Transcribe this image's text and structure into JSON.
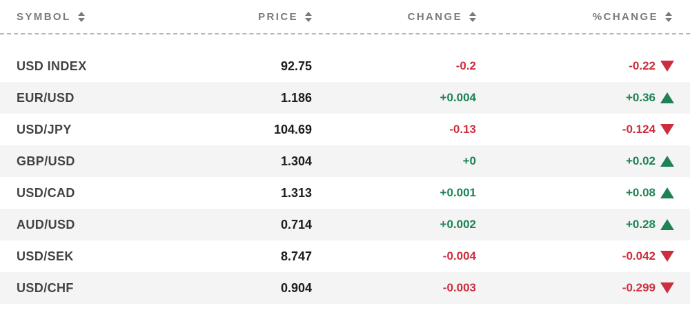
{
  "colors": {
    "up": "#1e8255",
    "down": "#cc2e3d",
    "header_text": "#7a7a7a",
    "separator": "#b5b5b5",
    "symbol_text": "#424242",
    "price_text": "#1c1c1c",
    "alt_row_bg": "#f4f4f4"
  },
  "icons": {
    "sort": "sort-arrows (up+down triangles)",
    "up": "triangle-up",
    "down": "triangle-down"
  },
  "table": {
    "columns": [
      {
        "label": "SYMBOL"
      },
      {
        "label": "PRICE"
      },
      {
        "label": "CHANGE"
      },
      {
        "label": "%CHANGE"
      }
    ],
    "rows": [
      {
        "symbol": "USD INDEX",
        "price": "92.75",
        "change": "-0.2",
        "pct_change": "-0.22",
        "direction": "down"
      },
      {
        "symbol": "EUR/USD",
        "price": "1.186",
        "change": "+0.004",
        "pct_change": "+0.36",
        "direction": "up"
      },
      {
        "symbol": "USD/JPY",
        "price": "104.69",
        "change": "-0.13",
        "pct_change": "-0.124",
        "direction": "down"
      },
      {
        "symbol": "GBP/USD",
        "price": "1.304",
        "change": "+0",
        "pct_change": "+0.02",
        "direction": "up"
      },
      {
        "symbol": "USD/CAD",
        "price": "1.313",
        "change": "+0.001",
        "pct_change": "+0.08",
        "direction": "up"
      },
      {
        "symbol": "AUD/USD",
        "price": "0.714",
        "change": "+0.002",
        "pct_change": "+0.28",
        "direction": "up"
      },
      {
        "symbol": "USD/SEK",
        "price": "8.747",
        "change": "-0.004",
        "pct_change": "-0.042",
        "direction": "down"
      },
      {
        "symbol": "USD/CHF",
        "price": "0.904",
        "change": "-0.003",
        "pct_change": "-0.299",
        "direction": "down"
      }
    ]
  }
}
